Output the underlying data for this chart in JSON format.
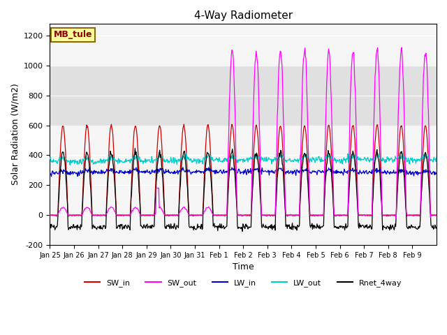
{
  "title": "4-Way Radiometer",
  "xlabel": "Time",
  "ylabel": "Solar Radiation (W/m2)",
  "ylim": [
    -200,
    1280
  ],
  "station_label": "MB_tule",
  "legend": {
    "SW_in": {
      "color": "#cc0000",
      "linestyle": "-"
    },
    "SW_out": {
      "color": "#ff00ff",
      "linestyle": "-"
    },
    "LW_in": {
      "color": "#0000cc",
      "linestyle": "-"
    },
    "LW_out": {
      "color": "#00cccc",
      "linestyle": "-"
    },
    "Rnet_4way": {
      "color": "#000000",
      "linestyle": "-"
    }
  },
  "xtick_labels": [
    "Jan 25",
    "Jan 26",
    "Jan 27",
    "Jan 28",
    "Jan 29",
    "Jan 30",
    "Jan 31",
    "Feb 1",
    "Feb 2",
    "Feb 3",
    "Feb 4",
    "Feb 5",
    "Feb 6",
    "Feb 7",
    "Feb 8",
    "Feb 9"
  ],
  "ytick_vals": [
    -200,
    0,
    200,
    400,
    600,
    800,
    1000,
    1200
  ],
  "ytick_labels": [
    "-200",
    "0",
    "200",
    "400",
    "600",
    "800",
    "1000",
    "1200"
  ],
  "shade_band": [
    600,
    1000
  ],
  "n_days": 16
}
